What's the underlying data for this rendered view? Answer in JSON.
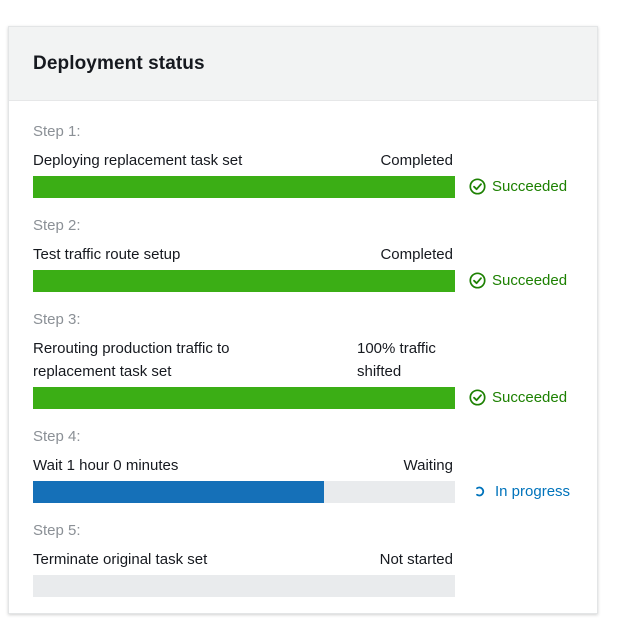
{
  "panel": {
    "title": "Deployment status"
  },
  "colors": {
    "success": "#1d8102",
    "bar_success": "#3bae15",
    "bar_progress": "#1570b8",
    "bar_track": "#e9ebed",
    "progress_text": "#0073bb"
  },
  "steps": [
    {
      "label": "Step 1:",
      "name": "Deploying replacement task set",
      "state": "Completed",
      "progress": 1.0,
      "status": "Succeeded",
      "status_icon": "check-circle-icon"
    },
    {
      "label": "Step 2:",
      "name": "Test traffic route setup",
      "state": "Completed",
      "progress": 1.0,
      "status": "Succeeded",
      "status_icon": "check-circle-icon"
    },
    {
      "label": "Step 3:",
      "name_line1": "Rerouting production traffic to",
      "name_line2": "replacement task set",
      "state_line1": "100% traffic",
      "state_line2": "shifted",
      "progress": 1.0,
      "status": "Succeeded",
      "status_icon": "check-circle-icon"
    },
    {
      "label": "Step 4:",
      "name": "Wait 1 hour 0 minutes",
      "state": "Waiting",
      "progress": 0.69,
      "status": "In progress",
      "status_icon": "spinner-icon"
    },
    {
      "label": "Step 5:",
      "name": "Terminate original task set",
      "state": "Not started",
      "progress": 0.0,
      "status": "",
      "status_icon": ""
    }
  ]
}
